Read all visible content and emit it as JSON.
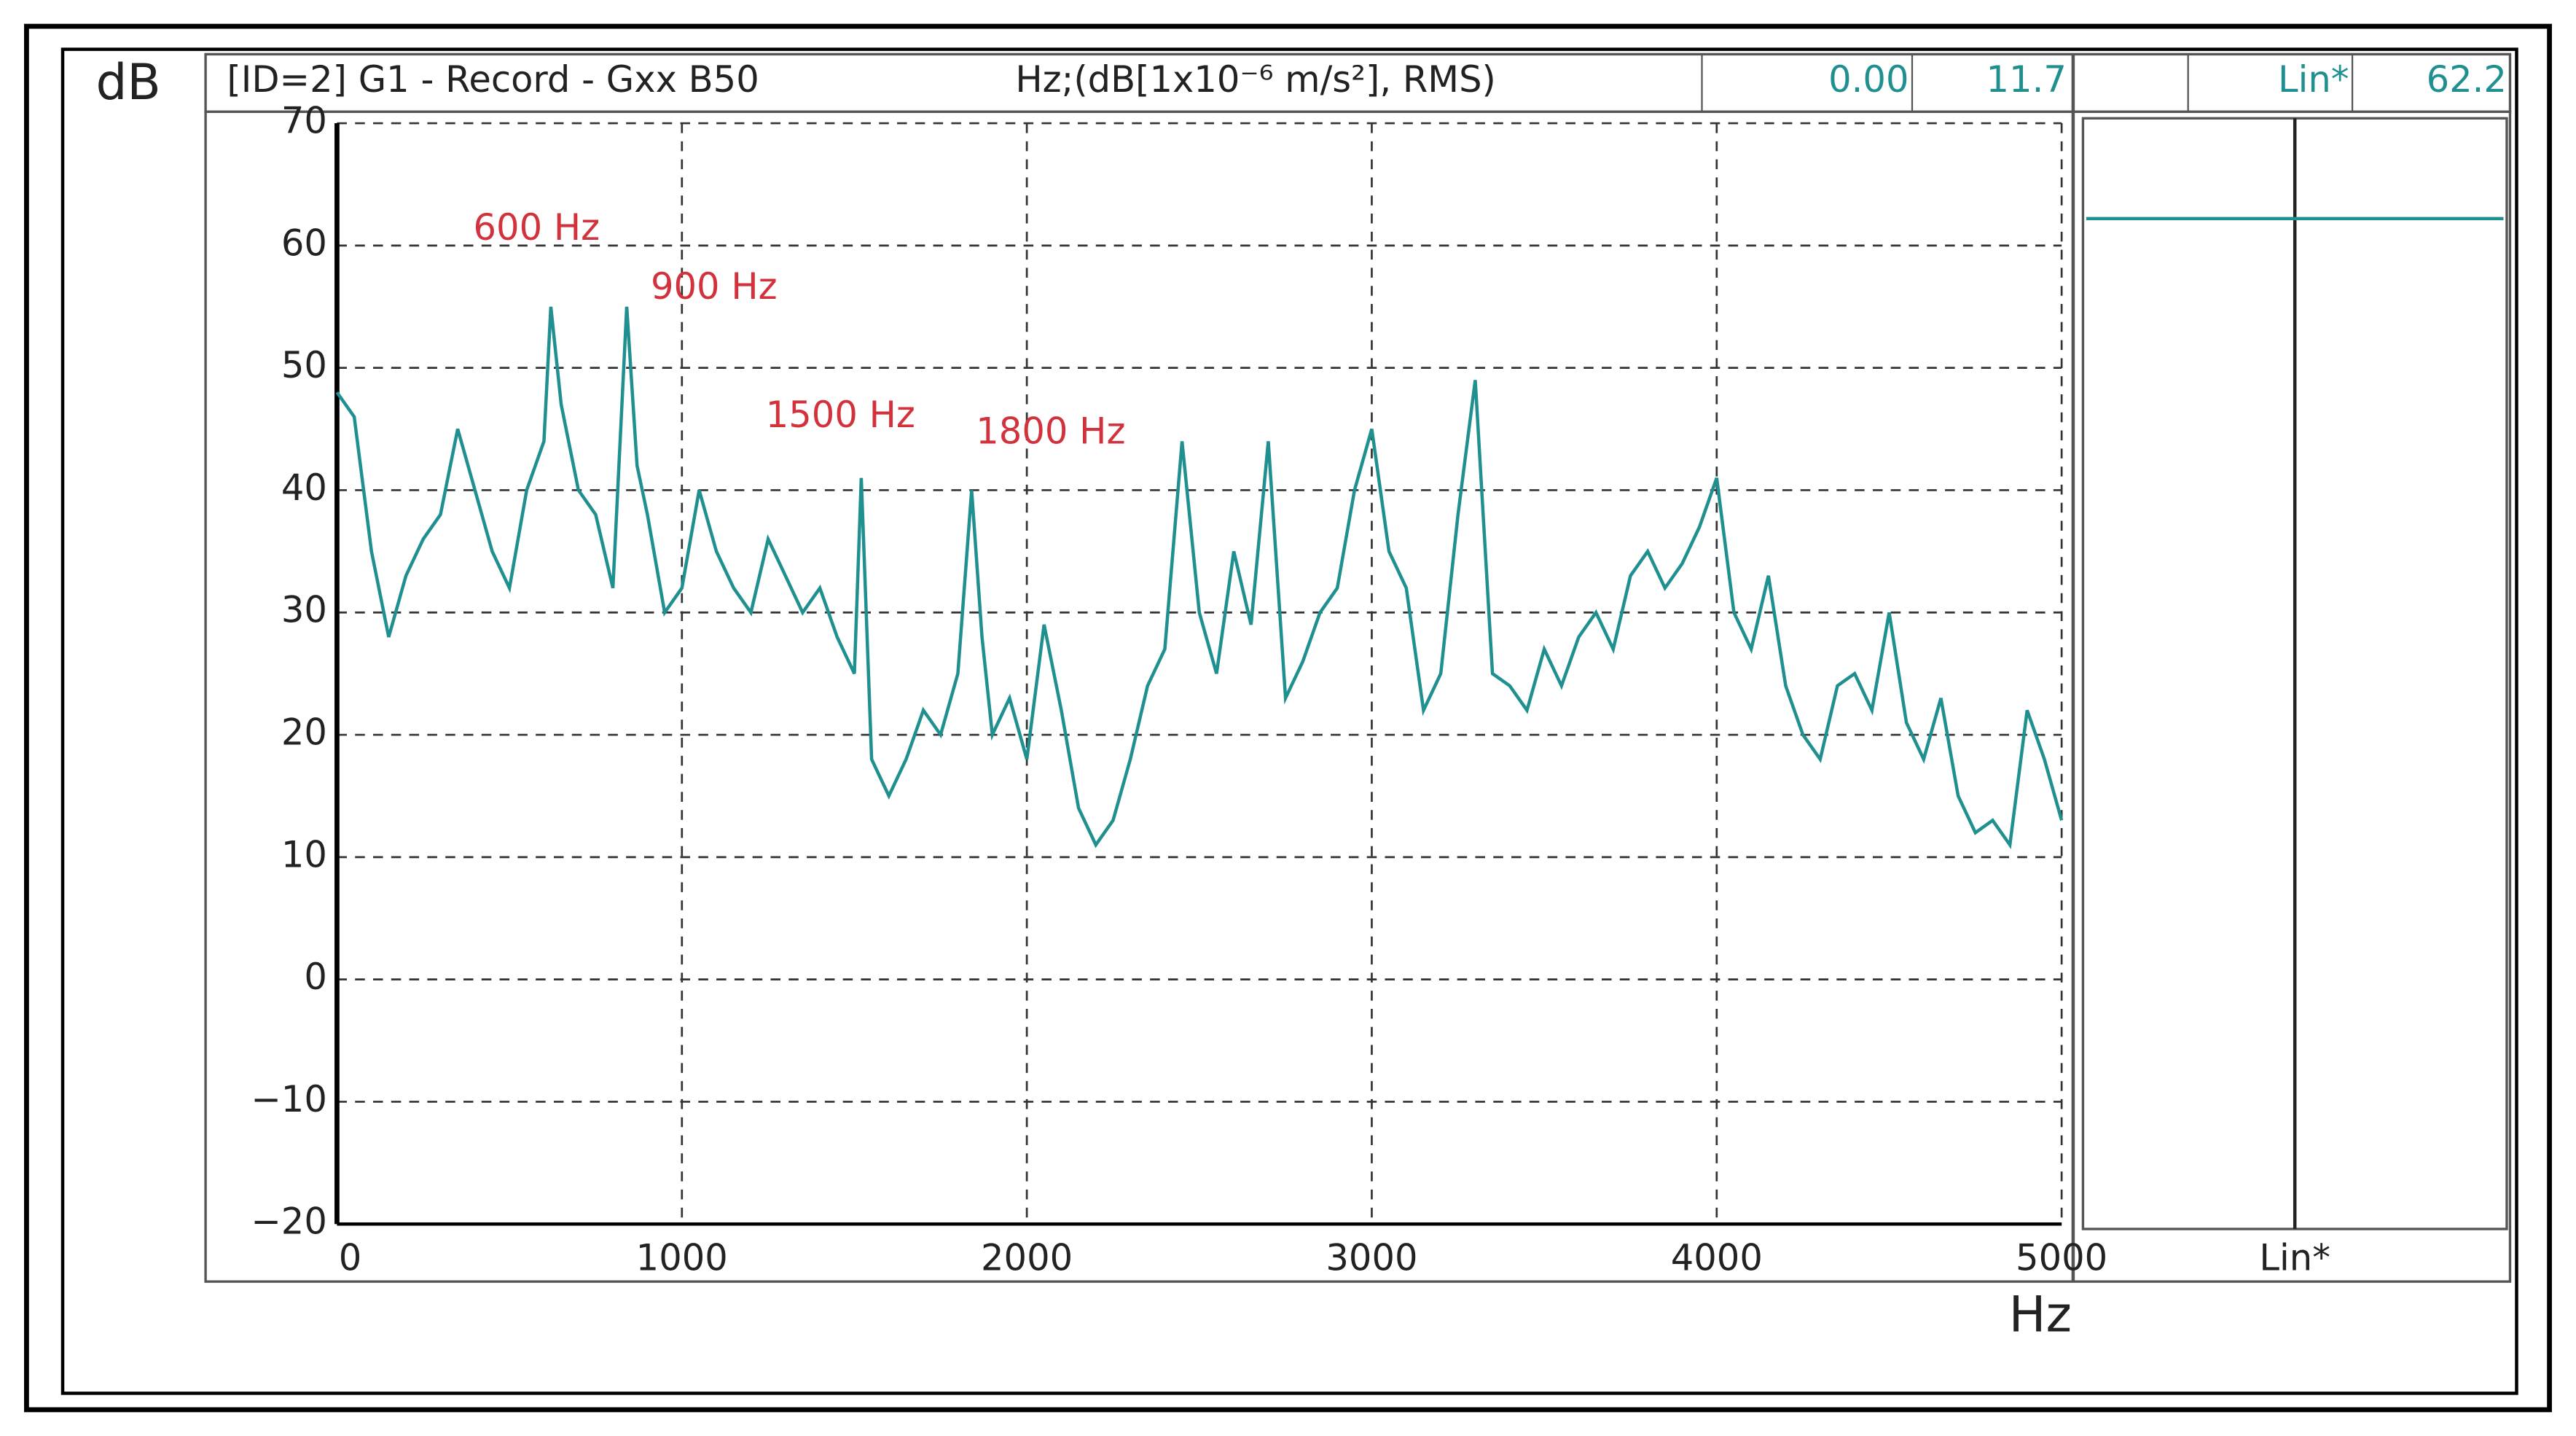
{
  "chart_data": {
    "type": "line",
    "header": {
      "title": "[ID=2] G1  - Record - Gxx B50",
      "units": "Hz;(dB[1x10⁻⁶ m/s²], RMS)",
      "readouts": [
        "0.00",
        "11.7"
      ]
    },
    "ylabel": "dB",
    "xlabel": "Hz",
    "annotations": [
      "600 Hz",
      "900 Hz",
      "1500 Hz",
      "1800 Hz"
    ],
    "x": [
      0,
      50,
      100,
      150,
      200,
      250,
      300,
      350,
      400,
      450,
      500,
      550,
      600,
      620,
      650,
      700,
      750,
      800,
      840,
      870,
      900,
      950,
      1000,
      1050,
      1100,
      1150,
      1200,
      1250,
      1300,
      1350,
      1400,
      1450,
      1500,
      1520,
      1550,
      1600,
      1650,
      1700,
      1750,
      1800,
      1840,
      1870,
      1900,
      1950,
      2000,
      2050,
      2100,
      2150,
      2200,
      2250,
      2300,
      2350,
      2400,
      2450,
      2500,
      2550,
      2600,
      2650,
      2700,
      2750,
      2800,
      2850,
      2900,
      2950,
      3000,
      3050,
      3100,
      3150,
      3200,
      3250,
      3300,
      3350,
      3400,
      3450,
      3500,
      3550,
      3600,
      3650,
      3700,
      3750,
      3800,
      3850,
      3900,
      3950,
      4000,
      4050,
      4100,
      4150,
      4200,
      4250,
      4300,
      4350,
      4400,
      4450,
      4500,
      4550,
      4600,
      4650,
      4700,
      4750,
      4800,
      4850,
      4900,
      4950,
      5000
    ],
    "series": [
      {
        "color": "#1f8f8f",
        "values": [
          48,
          46,
          35,
          28,
          33,
          36,
          38,
          45,
          40,
          35,
          32,
          40,
          44,
          55,
          47,
          40,
          38,
          32,
          55,
          42,
          38,
          30,
          32,
          40,
          35,
          32,
          30,
          36,
          33,
          30,
          32,
          28,
          25,
          41,
          18,
          15,
          18,
          22,
          20,
          25,
          40,
          28,
          20,
          23,
          18,
          29,
          22,
          14,
          11,
          13,
          18,
          24,
          27,
          44,
          30,
          25,
          35,
          29,
          44,
          23,
          26,
          30,
          32,
          40,
          45,
          35,
          32,
          22,
          25,
          38,
          49,
          25,
          24,
          22,
          27,
          24,
          28,
          30,
          27,
          33,
          35,
          32,
          34,
          37,
          41,
          30,
          27,
          33,
          24,
          20,
          18,
          24,
          25,
          22,
          30,
          21,
          18,
          23,
          15,
          12,
          13,
          11,
          22,
          18,
          13
        ]
      }
    ],
    "xlim": [
      0,
      5000
    ],
    "xticks": [
      0,
      1000,
      2000,
      3000,
      4000,
      5000
    ],
    "ylim": [
      -20,
      70
    ],
    "yticks": [
      {
        "value": -20,
        "label": "−20"
      },
      {
        "value": -10,
        "label": "−10"
      },
      0,
      10,
      20,
      30,
      40,
      50,
      60,
      70
    ],
    "grid": true,
    "side": {
      "label": "Lin*",
      "value": 62.2,
      "color": "#1f8f8f"
    }
  }
}
